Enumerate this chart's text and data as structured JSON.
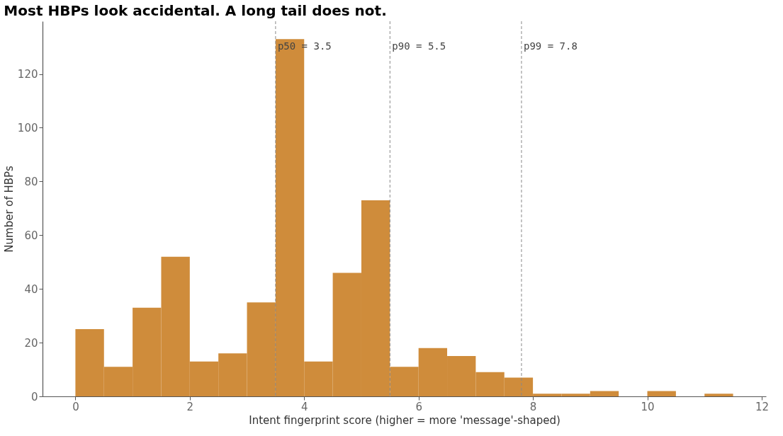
{
  "chart_data": {
    "type": "histogram",
    "title": "Most HBPs look accidental. A long tail does not.",
    "xlabel": "Intent fingerprint score (higher = more 'message'-shaped)",
    "ylabel": "Number of HBPs",
    "bins": [
      0,
      0.5,
      1,
      1.5,
      2,
      2.5,
      3,
      3.5,
      4,
      4.5,
      5,
      5.5,
      6,
      6.5,
      7,
      7.5,
      8,
      8.5,
      9,
      9.5,
      10,
      10.5,
      11,
      11.5
    ],
    "values": [
      25,
      11,
      33,
      52,
      13,
      16,
      35,
      133,
      13,
      46,
      73,
      11,
      18,
      15,
      9,
      7,
      1,
      1,
      2,
      0,
      2,
      0,
      1
    ],
    "color": "#cf8c3b",
    "xlim": [
      -0.575,
      12.075
    ],
    "ylim": [
      0,
      139.65
    ],
    "xticks": [
      0,
      2,
      4,
      6,
      8,
      10,
      12
    ],
    "yticks": [
      0,
      20,
      40,
      60,
      80,
      100,
      120
    ],
    "grid": false,
    "ref_lines": [
      {
        "axis": "x",
        "value": 3.5,
        "label": "p50 = 3.5",
        "color": "#888888",
        "line_style": "dashed"
      },
      {
        "axis": "x",
        "value": 5.5,
        "label": "p90 = 5.5",
        "color": "#888888",
        "line_style": "dashed"
      },
      {
        "axis": "x",
        "value": 7.8,
        "label": "p99 = 7.8",
        "color": "#888888",
        "line_style": "dashed"
      }
    ]
  }
}
